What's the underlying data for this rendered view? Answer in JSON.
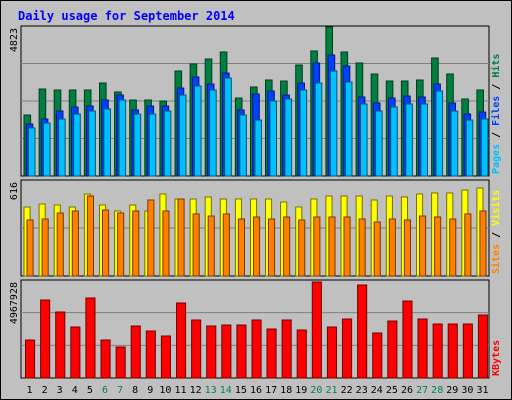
{
  "chart_data": {
    "title": "Daily usage for September 2014",
    "type": "bar",
    "categories": [
      "1",
      "2",
      "3",
      "4",
      "5",
      "6",
      "7",
      "8",
      "9",
      "10",
      "11",
      "12",
      "13",
      "14",
      "15",
      "16",
      "17",
      "18",
      "19",
      "20",
      "21",
      "22",
      "23",
      "24",
      "25",
      "26",
      "27",
      "28",
      "29",
      "30",
      "31"
    ],
    "weekend_days": [
      "6",
      "7",
      "13",
      "14",
      "20",
      "21",
      "27",
      "28"
    ],
    "panels": [
      {
        "id": "hits-files-pages",
        "ylabel_max": "4823",
        "ymax": 4823,
        "legend": [
          {
            "label": "Pages",
            "color": "#00c0ff"
          },
          {
            "label": "Files",
            "color": "#0040ff"
          },
          {
            "label": "Hits",
            "color": "#008040"
          }
        ],
        "series": [
          {
            "name": "Hits",
            "color": "#008040",
            "values": [
              1990,
              2810,
              2780,
              2780,
              2780,
              3000,
              2710,
              2450,
              2460,
              2430,
              3400,
              3640,
              3790,
              4010,
              2540,
              2880,
              3100,
              3090,
              3590,
              4030,
              4823,
              4010,
              3670,
              3300,
              3080,
              3080,
              3100,
              3820,
              3300,
              2490,
              2770
            ]
          },
          {
            "name": "Files",
            "color": "#0040ff",
            "values": [
              1680,
              1860,
              2090,
              2240,
              2260,
              2460,
              2620,
              2150,
              2260,
              2250,
              2850,
              3200,
              2990,
              3340,
              2130,
              2670,
              2750,
              2630,
              3000,
              3650,
              3920,
              3570,
              2570,
              2370,
              2520,
              2600,
              2550,
              2990,
              2360,
              2010,
              2060
            ]
          },
          {
            "name": "Pages",
            "color": "#00c0ff",
            "values": [
              1540,
              1720,
              1850,
              2000,
              2100,
              2170,
              2460,
              2010,
              2020,
              2120,
              2630,
              2920,
              2780,
              3160,
              1990,
              1820,
              2420,
              2480,
              2770,
              3020,
              3400,
              3030,
              2340,
              2120,
              2230,
              2330,
              2330,
              2740,
              2120,
              1810,
              1860
            ]
          }
        ]
      },
      {
        "id": "visits-sites",
        "ylabel_max": "616",
        "ymax": 616,
        "legend": [
          {
            "label": "Sites",
            "color": "#ff8000"
          },
          {
            "label": "Visits",
            "color": "#ffff00"
          }
        ],
        "series": [
          {
            "name": "Visits",
            "color": "#ffff00",
            "values": [
              450,
              470,
              460,
              450,
              530,
              460,
              420,
              460,
              420,
              530,
              500,
              500,
              510,
              500,
              500,
              500,
              500,
              480,
              450,
              500,
              520,
              520,
              520,
              490,
              520,
              510,
              530,
              540,
              540,
              560,
              570
            ]
          },
          {
            "name": "Sites",
            "color": "#ff8000",
            "values": [
              360,
              370,
              410,
              420,
              520,
              430,
              410,
              420,
              490,
              420,
              500,
              400,
              390,
              400,
              370,
              380,
              370,
              380,
              360,
              380,
              380,
              380,
              370,
              350,
              370,
              360,
              390,
              380,
              370,
              400,
              420
            ]
          }
        ]
      },
      {
        "id": "kbytes",
        "ylabel_max": "4967928",
        "ymax": 4967928,
        "legend": [
          {
            "label": "KBytes",
            "color": "#ff0000"
          }
        ],
        "series": [
          {
            "name": "KBytes",
            "color": "#ff0000",
            "values": [
              1950000,
              4010000,
              3370000,
              2630000,
              4100000,
              1930000,
              1580000,
              2680000,
              2430000,
              2130000,
              3830000,
              2980000,
              2640000,
              2710000,
              2690000,
              2980000,
              2490000,
              2980000,
              2470000,
              4910000,
              2590000,
              3010000,
              4780000,
              2300000,
              2910000,
              3960000,
              3000000,
              2760000,
              2770000,
              2790000,
              3240000
            ]
          }
        ]
      }
    ]
  }
}
